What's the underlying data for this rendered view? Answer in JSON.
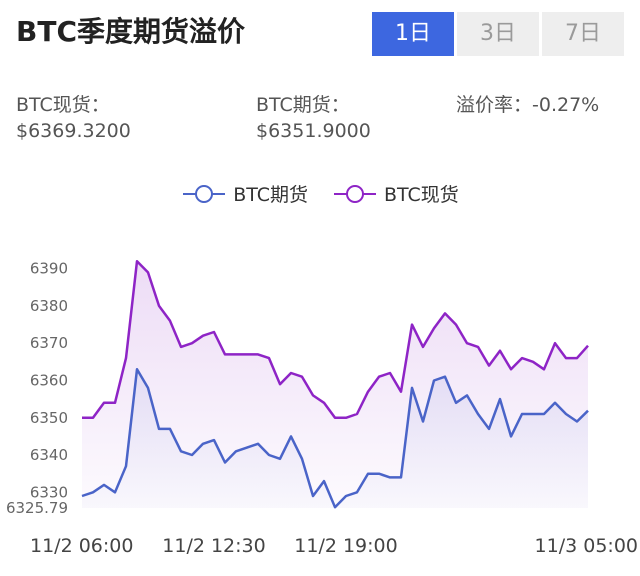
{
  "header": {
    "title": "BTC季度期货溢价",
    "tabs": [
      {
        "label": "1日",
        "active": true
      },
      {
        "label": "3日",
        "active": false
      },
      {
        "label": "7日",
        "active": false
      }
    ]
  },
  "stats": {
    "spot_label": "BTC现货：",
    "spot_value": "$6369.3200",
    "futures_label": "BTC期货：",
    "futures_value": "$6351.9000",
    "premium_label": "溢价率：",
    "premium_value": "-0.27%"
  },
  "colors": {
    "futures": "#4a64c8",
    "spot": "#8e24c6",
    "active_tab": "#3d67e0"
  },
  "chart_data": {
    "type": "line",
    "title": "",
    "xlabel": "",
    "ylabel": "",
    "ylim": [
      6325.79,
      6395
    ],
    "y_ticks": [
      6390,
      6380,
      6370,
      6360,
      6350,
      6340,
      6330
    ],
    "y_min_label": "6325.79",
    "x_tick_labels": [
      "11/2 06:00",
      "11/2 12:30",
      "11/2 19:00",
      "11/3 05:00"
    ],
    "x_tick_index": [
      0,
      12,
      24,
      41
    ],
    "legend_position": "top-center",
    "grid": false,
    "series": [
      {
        "name": "BTC期货",
        "color": "#4a64c8",
        "values": [
          6329,
          6330,
          6332,
          6330,
          6337,
          6363,
          6358,
          6347,
          6347,
          6341,
          6340,
          6343,
          6344,
          6338,
          6341,
          6342,
          6343,
          6340,
          6339,
          6345,
          6339,
          6329,
          6333,
          6326,
          6329,
          6330,
          6335,
          6335,
          6334,
          6334,
          6358,
          6349,
          6360,
          6361,
          6354,
          6356,
          6351,
          6347,
          6355,
          6345,
          6351,
          6351,
          6351,
          6354,
          6351,
          6349,
          6351.9
        ]
      },
      {
        "name": "BTC现货",
        "color": "#8e24c6",
        "values": [
          6350,
          6350,
          6354,
          6354,
          6366,
          6392,
          6389,
          6380,
          6376,
          6369,
          6370,
          6372,
          6373,
          6367,
          6367,
          6367,
          6367,
          6366,
          6359,
          6362,
          6361,
          6356,
          6354,
          6350,
          6350,
          6351,
          6357,
          6361,
          6362,
          6357,
          6375,
          6369,
          6374,
          6378,
          6375,
          6370,
          6369,
          6364,
          6368,
          6363,
          6366,
          6365,
          6363,
          6370,
          6366,
          6366,
          6369.32
        ]
      }
    ]
  }
}
